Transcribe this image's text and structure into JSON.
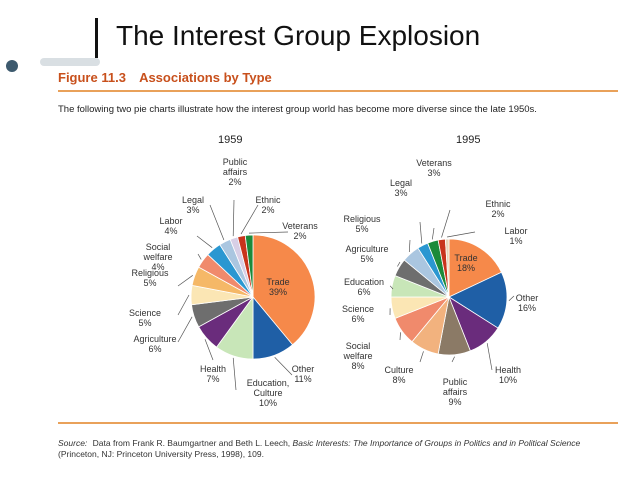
{
  "slide": {
    "title": "The Interest Group Explosion"
  },
  "figure": {
    "number": "Figure 11.3",
    "title": "Associations by Type",
    "intro": "The following two pie charts illustrate how the interest group world has become more diverse since the late 1950s.",
    "source_label": "Source:",
    "source_text_1": "Data from Frank R. Baumgartner and Beth L. Leech,",
    "source_book": "Basic Interests: The Importance of Groups in Politics and in Political Science",
    "source_text_2": "(Princeton, NJ: Princeton University Press, 1998), 109."
  },
  "chart_data": [
    {
      "type": "pie",
      "title": "1959",
      "slices": [
        {
          "label": "Trade",
          "value": 39,
          "text": "39%",
          "color": "#f6894a"
        },
        {
          "label": "Other",
          "value": 11,
          "text": "11%",
          "color": "#1f5fa6"
        },
        {
          "label": "Education, Culture",
          "value": 10,
          "text": "10%",
          "color": "#c8e6b8"
        },
        {
          "label": "Health",
          "value": 7,
          "text": "7%",
          "color": "#6a2c7c"
        },
        {
          "label": "Agriculture",
          "value": 6,
          "text": "6%",
          "color": "#6e6e6e"
        },
        {
          "label": "Science",
          "value": 5,
          "text": "5%",
          "color": "#fbe6b4"
        },
        {
          "label": "Religious",
          "value": 5,
          "text": "5%",
          "color": "#f5b867"
        },
        {
          "label": "Social welfare",
          "value": 4,
          "text": "4%",
          "color": "#f08a6c"
        },
        {
          "label": "Labor",
          "value": 4,
          "text": "4%",
          "color": "#2a97d1"
        },
        {
          "label": "Legal",
          "value": 3,
          "text": "3%",
          "color": "#aac6e0"
        },
        {
          "label": "Public affairs",
          "value": 2,
          "text": "2%",
          "color": "#d8cfe6"
        },
        {
          "label": "Ethnic",
          "value": 2,
          "text": "2%",
          "color": "#c8341c"
        },
        {
          "label": "Veterans",
          "value": 2,
          "text": "2%",
          "color": "#1b8a3a"
        }
      ]
    },
    {
      "type": "pie",
      "title": "1995",
      "slices": [
        {
          "label": "Trade",
          "value": 18,
          "text": "18%",
          "color": "#f6894a"
        },
        {
          "label": "Other",
          "value": 16,
          "text": "16%",
          "color": "#1f5fa6"
        },
        {
          "label": "Health",
          "value": 10,
          "text": "10%",
          "color": "#6a2c7c"
        },
        {
          "label": "Public affairs",
          "value": 9,
          "text": "9%",
          "color": "#8b7a66"
        },
        {
          "label": "Culture",
          "value": 8,
          "text": "8%",
          "color": "#f2b27e"
        },
        {
          "label": "Social welfare",
          "value": 8,
          "text": "8%",
          "color": "#f08a6c"
        },
        {
          "label": "Science",
          "value": 6,
          "text": "6%",
          "color": "#fbe6b4"
        },
        {
          "label": "Education",
          "value": 6,
          "text": "6%",
          "color": "#c8e6b8"
        },
        {
          "label": "Agriculture",
          "value": 5,
          "text": "5%",
          "color": "#6e6e6e"
        },
        {
          "label": "Religious",
          "value": 5,
          "text": "5%",
          "color": "#aac6e0"
        },
        {
          "label": "Legal",
          "value": 3,
          "text": "3%",
          "color": "#2a97d1"
        },
        {
          "label": "Veterans",
          "value": 3,
          "text": "3%",
          "color": "#1b8a3a"
        },
        {
          "label": "Ethnic",
          "value": 2,
          "text": "2%",
          "color": "#c8341c"
        },
        {
          "label": "Labor",
          "value": 1,
          "text": "1%",
          "color": "#e8d3b5"
        }
      ]
    }
  ]
}
